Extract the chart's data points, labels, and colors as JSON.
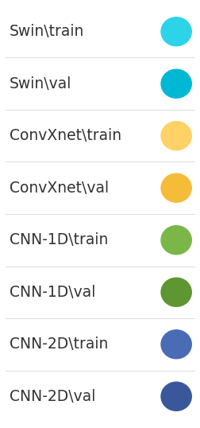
{
  "entries": [
    {
      "label": "Swin\\train",
      "color": "#2DD4E8"
    },
    {
      "label": "Swin\\val",
      "color": "#00B8D4"
    },
    {
      "label": "ConvXnet\\train",
      "color": "#FFD166"
    },
    {
      "label": "ConvXnet\\val",
      "color": "#F5BC3A"
    },
    {
      "label": "CNN-1D\\train",
      "color": "#7AB648"
    },
    {
      "label": "CNN-1D\\val",
      "color": "#5E9632"
    },
    {
      "label": "CNN-2D\\train",
      "color": "#4A6CB5"
    },
    {
      "label": "CNN-2D\\val",
      "color": "#3A579A"
    }
  ],
  "background_color": "#ffffff",
  "text_color": "#333333",
  "font_size": 13.5,
  "figsize": [
    2.53,
    5.38
  ],
  "dpi": 100
}
